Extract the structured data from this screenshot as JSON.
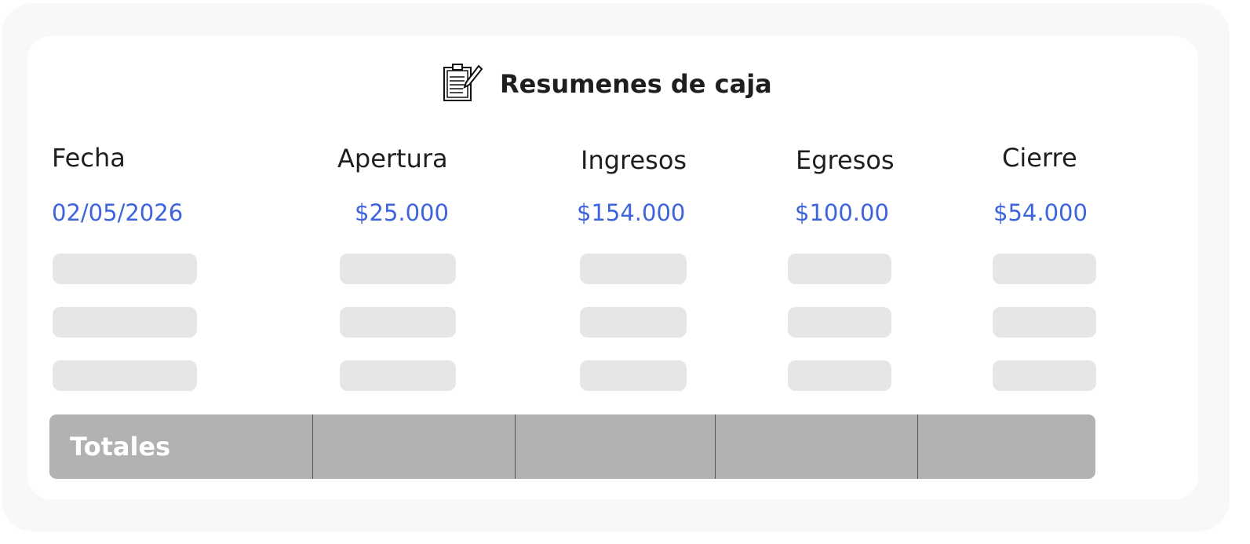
{
  "title": "Resumenes de caja",
  "icon": "clipboard-pencil-icon",
  "columns": [
    "Fecha",
    "Apertura",
    "Ingresos",
    "Egresos",
    "Cierre"
  ],
  "row": [
    "02/05/2026",
    "$25.000",
    "$154.000",
    "$100.00",
    "$54.000"
  ],
  "totals_label": "Totales",
  "colors": {
    "accent": "#3d63dd",
    "skeleton": "#e6e6e6",
    "totals_bar": "#b2b2b2"
  }
}
